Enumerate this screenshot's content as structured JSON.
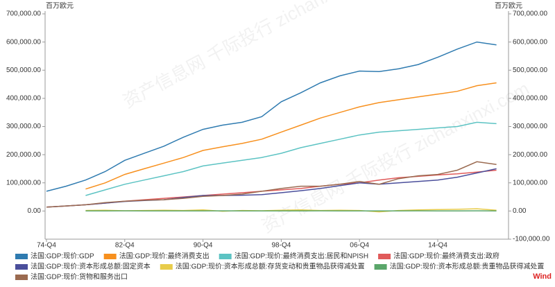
{
  "chart_data": {
    "type": "line",
    "y_unit": "百万欧元",
    "y2_unit": "百万欧元",
    "source": "Wind",
    "watermark": "资产信息网 千际投行 zichanxinxi.com",
    "categories": [
      "74-Q4",
      null,
      null,
      null,
      "82-Q4",
      null,
      null,
      null,
      "90-Q4",
      null,
      null,
      null,
      "98-Q4",
      null,
      null,
      null,
      "06-Q4",
      null,
      null,
      null,
      "14-Q4",
      null,
      null,
      null
    ],
    "ylim": [
      -100000,
      700000
    ],
    "yticks": [
      {
        "value": 0,
        "label": "0.00"
      },
      {
        "value": 100000,
        "label": "100,000.00"
      },
      {
        "value": 200000,
        "label": "200,000.00"
      },
      {
        "value": 300000,
        "label": "300,000.00"
      },
      {
        "value": 400000,
        "label": "400,000.00"
      },
      {
        "value": 500000,
        "label": "500,000.00"
      },
      {
        "value": 600000,
        "label": "600,000.00"
      },
      {
        "value": 700000,
        "label": "700,000.00"
      }
    ],
    "y2lim": [
      -100000,
      700000
    ],
    "y2ticks": [
      {
        "value": -100000,
        "label": "-100,000.00"
      },
      {
        "value": 0,
        "label": "0.00"
      },
      {
        "value": 100000,
        "label": "100,000.00"
      },
      {
        "value": 200000,
        "label": "200,000.00"
      },
      {
        "value": 300000,
        "label": "300,000.00"
      },
      {
        "value": 400000,
        "label": "400,000.00"
      },
      {
        "value": 500000,
        "label": "500,000.00"
      },
      {
        "value": 600000,
        "label": "600,000.00"
      },
      {
        "value": 700000,
        "label": "700,000.00"
      }
    ],
    "grid": false,
    "series": [
      {
        "name": "法国:GDP:现价:GDP",
        "color": "#2f7bb0",
        "values": [
          70000,
          88000,
          110000,
          140000,
          180000,
          205000,
          230000,
          262000,
          290000,
          305000,
          315000,
          335000,
          388000,
          420000,
          455000,
          480000,
          497000,
          495000,
          505000,
          520000,
          546000,
          575000,
          600000,
          590000
        ]
      },
      {
        "name": "法国:GDP:现价:最终消费支出",
        "color": "#f7901e",
        "values": [
          null,
          null,
          78000,
          100000,
          130000,
          150000,
          170000,
          190000,
          215000,
          228000,
          240000,
          255000,
          280000,
          305000,
          330000,
          350000,
          370000,
          385000,
          395000,
          405000,
          415000,
          425000,
          445000,
          455000
        ]
      },
      {
        "name": "法国:GDP:现价:最终消费支出:居民和NPISH",
        "color": "#5cc3c3",
        "values": [
          null,
          null,
          55000,
          75000,
          95000,
          110000,
          125000,
          140000,
          160000,
          170000,
          180000,
          190000,
          205000,
          225000,
          240000,
          255000,
          270000,
          280000,
          285000,
          290000,
          295000,
          300000,
          315000,
          310000
        ]
      },
      {
        "name": "法国:GDP:现价:最终消费支出:政府",
        "color": "#e05a5a",
        "values": [
          14000,
          18000,
          22000,
          28000,
          35000,
          40000,
          45000,
          50000,
          55000,
          60000,
          65000,
          70000,
          75000,
          80000,
          88000,
          95000,
          100000,
          110000,
          118000,
          123000,
          128000,
          132000,
          138000,
          145000
        ]
      },
      {
        "name": "法国:GDP:现价:资本形成总额:固定资本",
        "color": "#4a4e9b",
        "values": [
          14000,
          18000,
          22000,
          28000,
          34000,
          37000,
          40000,
          48000,
          55000,
          55000,
          56000,
          58000,
          65000,
          72000,
          80000,
          90000,
          100000,
          95000,
          100000,
          105000,
          110000,
          120000,
          135000,
          150000
        ]
      },
      {
        "name": "法国:GDP:现价:资本形成总额:存货变动和贵重物品获得减处置",
        "color": "#e8cc4a",
        "values": [
          null,
          null,
          2000,
          3000,
          1000,
          2000,
          3000,
          2000,
          4000,
          -1000,
          2000,
          1000,
          3000,
          4000,
          2000,
          3000,
          2000,
          -3000,
          2000,
          4000,
          5000,
          6000,
          8000,
          3000
        ]
      },
      {
        "name": "法国:GDP:现价:资本形成总额:贵重物品获得减处置",
        "color": "#5aa66a",
        "values": [
          null,
          null,
          500,
          400,
          600,
          500,
          300,
          400,
          500,
          600,
          400,
          300,
          500,
          400,
          600,
          500,
          400,
          300,
          500,
          600,
          400,
          500,
          600,
          500
        ]
      },
      {
        "name": "法国:GDP:现价:货物和服务出口",
        "color": "#9a6a50",
        "values": [
          14000,
          18000,
          22000,
          30000,
          35000,
          38000,
          40000,
          45000,
          52000,
          55000,
          60000,
          70000,
          80000,
          88000,
          88000,
          95000,
          105000,
          95000,
          115000,
          125000,
          130000,
          145000,
          175000,
          165000
        ]
      }
    ]
  }
}
